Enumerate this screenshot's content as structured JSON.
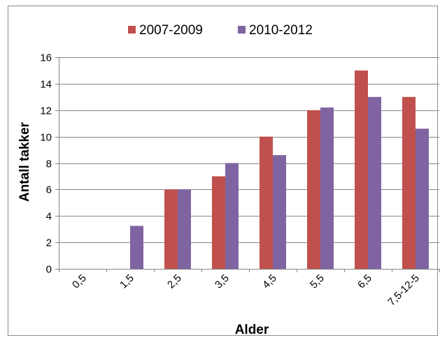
{
  "chart_data": {
    "type": "bar",
    "title": "",
    "xlabel": "Alder",
    "ylabel": "Antall takker",
    "categories": [
      "0,5",
      "1,5",
      "2,5",
      "3,5",
      "4,5",
      "5,5",
      "6,5",
      "7,5-12-5"
    ],
    "series": [
      {
        "name": "2007-2009",
        "color": "#C0504D",
        "values": [
          0,
          0,
          6,
          7,
          10,
          12,
          15,
          13
        ]
      },
      {
        "name": "2010-2012",
        "color": "#8064A2",
        "values": [
          0,
          3.25,
          6,
          8,
          8.6,
          12.2,
          13,
          10.6
        ]
      }
    ],
    "ylim": [
      0,
      16
    ],
    "yticks": [
      0,
      2,
      4,
      6,
      8,
      10,
      12,
      14,
      16
    ],
    "grid": true,
    "legend_position": "top"
  }
}
